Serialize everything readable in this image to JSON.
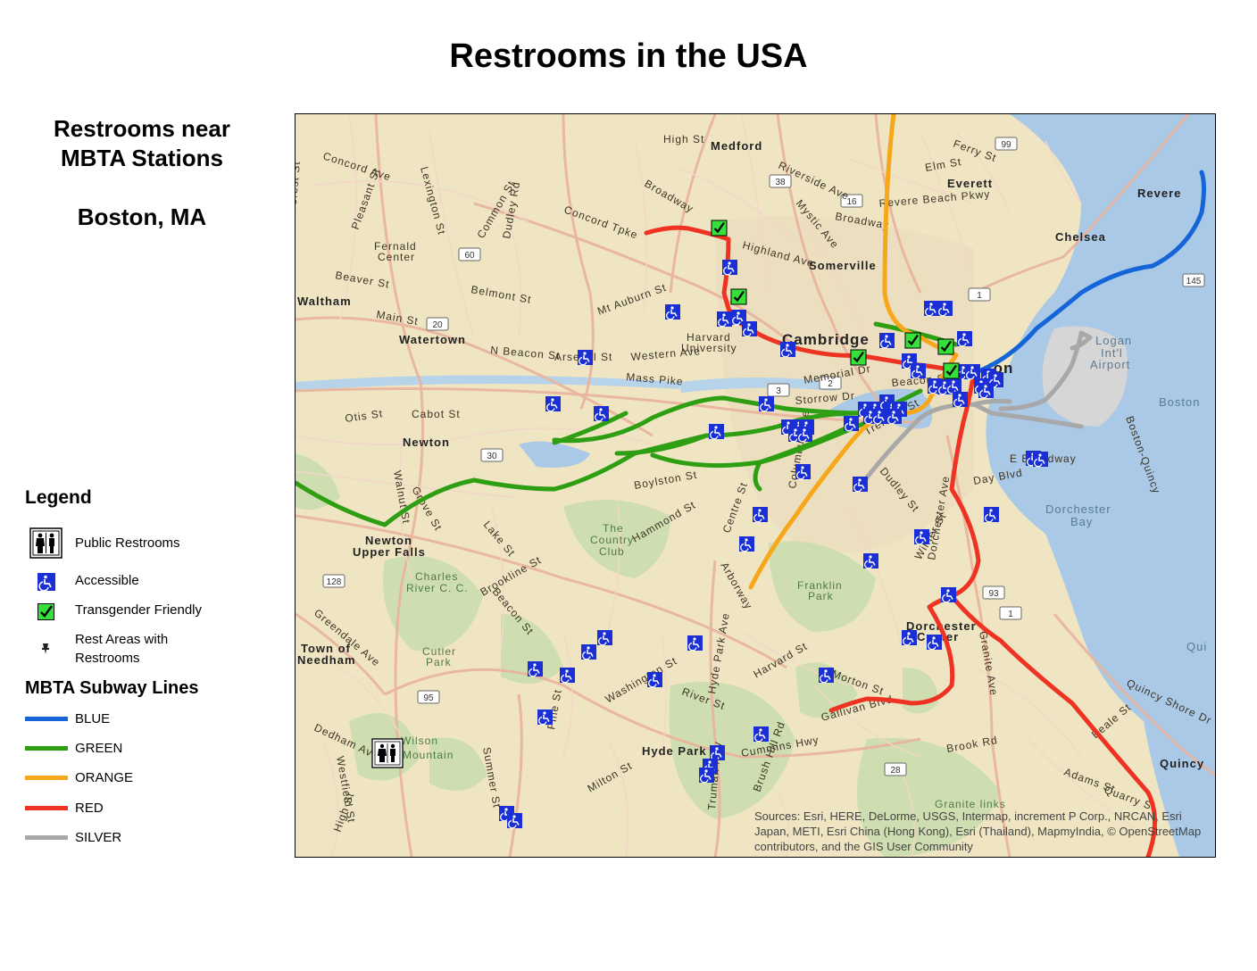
{
  "title": "Restrooms in the USA",
  "side": {
    "heading_line1": "Restrooms near",
    "heading_line2": "MBTA Stations",
    "location": "Boston, MA"
  },
  "legend": {
    "heading": "Legend",
    "items": [
      {
        "label": "Public Restrooms",
        "icon": "restroom-icon"
      },
      {
        "label": "Accessible",
        "icon": "wheelchair-icon"
      },
      {
        "label": "Transgender Friendly",
        "icon": "check-icon"
      },
      {
        "label": "Rest Areas with",
        "label2": "Restrooms",
        "icon": "pushpin-icon"
      }
    ],
    "lines_heading": "MBTA Subway Lines",
    "lines": [
      {
        "label": "BLUE",
        "color": "#1565d8"
      },
      {
        "label": "GREEN",
        "color": "#2e9e12"
      },
      {
        "label": "ORANGE",
        "color": "#f7a81a"
      },
      {
        "label": "RED",
        "color": "#ee3322"
      },
      {
        "label": "SILVER",
        "color": "#a8a8a8"
      }
    ]
  },
  "map": {
    "towns": [
      {
        "name": "Medford",
        "style": "town"
      },
      {
        "name": "Everett",
        "style": "town"
      },
      {
        "name": "Revere",
        "style": "town"
      },
      {
        "name": "Chelsea",
        "style": "town"
      },
      {
        "name": "Somerville",
        "style": "town"
      },
      {
        "name": "Waltham",
        "style": "town"
      },
      {
        "name": "Watertown",
        "style": "town"
      },
      {
        "name": "Cambridge",
        "style": "big"
      },
      {
        "name": "Newton",
        "style": "town"
      },
      {
        "name": "Newton",
        "style": "town"
      },
      {
        "name": "Upper Falls",
        "style": "town"
      },
      {
        "name": "Town of",
        "style": "town"
      },
      {
        "name": "Needham",
        "style": "town"
      },
      {
        "name": "Dorchester",
        "style": "town"
      },
      {
        "name": "Center",
        "style": "town"
      },
      {
        "name": "Hyde Park",
        "style": "town"
      },
      {
        "name": "Quincy",
        "style": "town"
      },
      {
        "name": "ton",
        "style": "big"
      }
    ],
    "streets": [
      "High St",
      "Concord Ave",
      "Broadway",
      "Fernald",
      "Center",
      "Beaver St",
      "Belmont St",
      "Main St",
      "Mt Auburn St",
      "Harvard",
      "University",
      "Western Ave",
      "Mass Pike",
      "Memorial Dr",
      "Storrow Dr",
      "N Beacon St",
      "Arsenal St",
      "Cabot St",
      "Otis St",
      "Concord Tpke",
      "Highland Ave",
      "Riverside Ave",
      "Mystic Ave",
      "Broadway",
      "Revere Beach Pkwy",
      "Elm St",
      "Ferry St",
      "Beacon St",
      "Tremont St",
      "Dudley St",
      "Columbus Ave",
      "Centre St",
      "Arborway",
      "Boylston St",
      "Brookline St",
      "Hammond St",
      "Dedham Ave",
      "Greendale Ave",
      "Harvard St",
      "Morton St",
      "River St",
      "Hyde Park Ave",
      "Washington St",
      "Cummins Hwy",
      "Gallivan Blvd",
      "Dorchester Ave",
      "Granite Ave",
      "Adams St",
      "Quincy Shore Dr",
      "Beale St",
      "Quarry St",
      "Brook Rd",
      "Walnut St",
      "Day Blvd",
      "E Broadway",
      "Boston-Quincy",
      "Milton St",
      "Brush Hill Rd",
      "Truman Hwy",
      "High St",
      "Westfield St",
      "Summer St",
      "Pine St",
      "Grove St",
      "Lake St",
      "Beacon St",
      "Dudley Rd",
      "Common St",
      "Pleasant St",
      "Forest St",
      "Lexington St",
      "Winter St",
      "Columbia Rd"
    ],
    "parks": [
      "The",
      "Country",
      "Club",
      "Franklin",
      "Park",
      "Charles",
      "River C. C.",
      "Cutler",
      "Park",
      "Wilson",
      "Mountain",
      "Granite links"
    ],
    "water": [
      "Dorchester",
      "Bay",
      "Boston",
      "Logan",
      "Int'l",
      "Airport",
      "Qui"
    ],
    "shields": [
      "38",
      "16",
      "99",
      "60",
      "20",
      "1",
      "145",
      "3",
      "30",
      "128",
      "95",
      "93",
      "1",
      "28",
      "2"
    ],
    "attribution": "Sources: Esri, HERE, DeLorme, USGS, Intermap, increment P Corp., NRCAN, Esri Japan, METI, Esri China (Hong Kong), Esri (Thailand), MapmyIndia, © OpenStreetMap contributors, and the GIS User Community"
  }
}
